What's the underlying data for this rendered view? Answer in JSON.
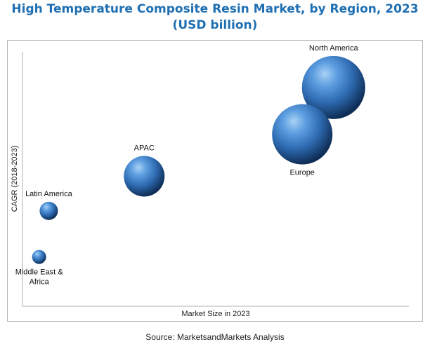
{
  "title_line1": "High Temperature Composite Resin Market, by Region, 2023",
  "title_line2": "(USD billion)",
  "source": "Source: MarketsandMarkets Analysis",
  "colors": {
    "title": "#1f6fb2",
    "bubble_light": "#a9d2f5",
    "bubble_mid": "#3f7fc4",
    "bubble_dark": "#0e2c54"
  },
  "chart_data": {
    "type": "scatter",
    "title": "High Temperature Composite Resin Market, by Region, 2023 (USD billion)",
    "xlabel": "Market Size in 2023",
    "ylabel": "CAGR (2018-2023)",
    "x_ticks": false,
    "y_ticks": false,
    "xlim": [
      0,
      100
    ],
    "ylim": [
      0,
      100
    ],
    "grid": false,
    "legend": "none",
    "points": [
      {
        "label": "North America",
        "x": 80.5,
        "y": 86.0,
        "size": 45,
        "label_position": "above"
      },
      {
        "label": "Europe",
        "x": 72.4,
        "y": 67.6,
        "size": 43,
        "label_position": "below"
      },
      {
        "label": "APAC",
        "x": 31.5,
        "y": 51.1,
        "size": 29,
        "label_position": "above"
      },
      {
        "label": "Latin America",
        "x": 6.8,
        "y": 37.5,
        "size": 13,
        "label_position": "above"
      },
      {
        "label": "Middle East & Africa",
        "x": 4.3,
        "y": 19.4,
        "size": 10,
        "label_position": "below"
      }
    ]
  }
}
